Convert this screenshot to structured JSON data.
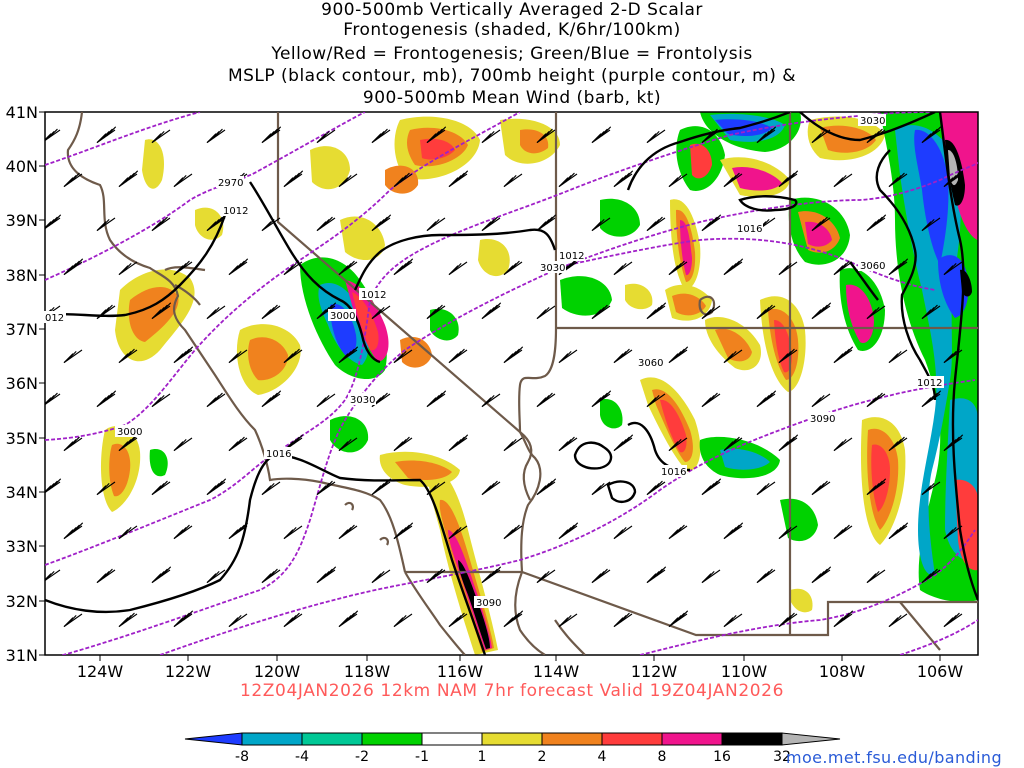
{
  "title_lines": [
    "900-500mb Vertically Averaged 2-D Scalar",
    "Frontogenesis (shaded, K/6hr/100km)",
    "Yellow/Red = Frontogenesis;  Green/Blue = Frontolysis",
    "MSLP (black contour, mb), 700mb height (purple contour, m) &",
    "900-500mb Mean Wind (barb, kt)"
  ],
  "forecast_label": "12Z04JAN2026 12km NAM 7hr forecast Valid 19Z04JAN2026",
  "credit": "moe.met.fsu.edu/banding",
  "lat_labels": [
    "41N",
    "40N",
    "39N",
    "38N",
    "37N",
    "36N",
    "35N",
    "34N",
    "33N",
    "32N",
    "31N"
  ],
  "lon_labels": [
    "124W",
    "122W",
    "120W",
    "118W",
    "116W",
    "114W",
    "112W",
    "110W",
    "108W",
    "106W"
  ],
  "mslp_labels": [
    "1012",
    "1012",
    "1012",
    "1012",
    "1016",
    "1016",
    "1016",
    "1012",
    "012"
  ],
  "height_labels": [
    "2970",
    "3030",
    "3060",
    "3090",
    "3000",
    "3030",
    "3000",
    "3090",
    "3060",
    "3030"
  ],
  "legend": {
    "values": [
      "-8",
      "-4",
      "-2",
      "-1",
      "1",
      "2",
      "4",
      "8",
      "16",
      "32"
    ],
    "colors": [
      "#1e3cff",
      "#00a6c8",
      "#00c896",
      "#00d200",
      "#ffffff",
      "#e6dc32",
      "#f0821e",
      "#ff3c3c",
      "#f0148c",
      "#000000",
      "#b4b4b4"
    ]
  },
  "colors": {
    "mslp": "#000000",
    "height": "#a020c8",
    "border": "#6e5a4a",
    "forecast": "#ff5a5a"
  }
}
